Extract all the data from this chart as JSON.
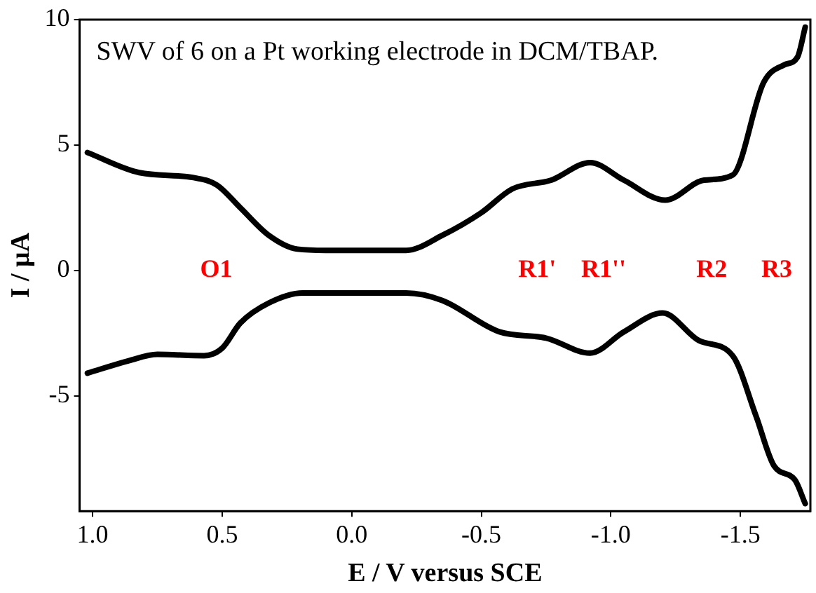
{
  "chart_data": {
    "type": "line",
    "title": "SWV of 6 on a Pt working electrode in DCM/TBAP.",
    "xlabel": "E / V versus SCE",
    "ylabel": "I / μA",
    "xlim": [
      1.05,
      -1.77
    ],
    "ylim": [
      -9.6,
      10
    ],
    "xticks": [
      {
        "value": 1,
        "label": "1.0"
      },
      {
        "value": 0.5,
        "label": "0.5"
      },
      {
        "value": 0,
        "label": "0.0"
      },
      {
        "value": -0.5,
        "label": "-0.5"
      },
      {
        "value": -1,
        "label": "-1.0"
      },
      {
        "value": -1.5,
        "label": "-1.5"
      }
    ],
    "yticks": [
      10,
      5,
      0,
      -5
    ],
    "grid": false,
    "legend": false,
    "marker": "none",
    "line_style": "solid",
    "annotations": [
      "O1",
      "R1'",
      "R1''",
      "R2",
      "R3"
    ],
    "series": [
      {
        "color": "#000000",
        "x": [
          1.02,
          0.82,
          0.61,
          0.52,
          0.43,
          0.32,
          0.21,
          0.1,
          -0.17,
          -0.21,
          -0.35,
          -0.5,
          -0.62,
          -0.77,
          -0.92,
          -1.05,
          -1.21,
          -1.36,
          -1.47,
          -1.59,
          -1.67,
          -1.72,
          -1.75
        ],
        "values": [
          4.7,
          3.9,
          3.7,
          3.4,
          2.5,
          1.4,
          0.85,
          0.8,
          0.8,
          0.8,
          1.4,
          2.3,
          3.25,
          3.6,
          4.3,
          3.6,
          2.8,
          3.6,
          3.8,
          7.5,
          8.2,
          8.5,
          9.7
        ]
      },
      {
        "color": "#000000",
        "x": [
          1.02,
          0.86,
          0.75,
          0.57,
          0.5,
          0.43,
          0.32,
          0.19,
          -0.17,
          -0.21,
          -0.35,
          -0.57,
          -0.75,
          -0.92,
          -1.05,
          -1.2,
          -1.34,
          -1.47,
          -1.56,
          -1.63,
          -1.71,
          -1.75
        ],
        "values": [
          -4.1,
          -3.6,
          -3.35,
          -3.4,
          -3.1,
          -2.1,
          -1.3,
          -0.9,
          -0.9,
          -0.9,
          -1.2,
          -2.45,
          -2.7,
          -3.3,
          -2.45,
          -1.7,
          -2.8,
          -3.4,
          -5.8,
          -7.8,
          -8.35,
          -9.3
        ]
      }
    ]
  }
}
